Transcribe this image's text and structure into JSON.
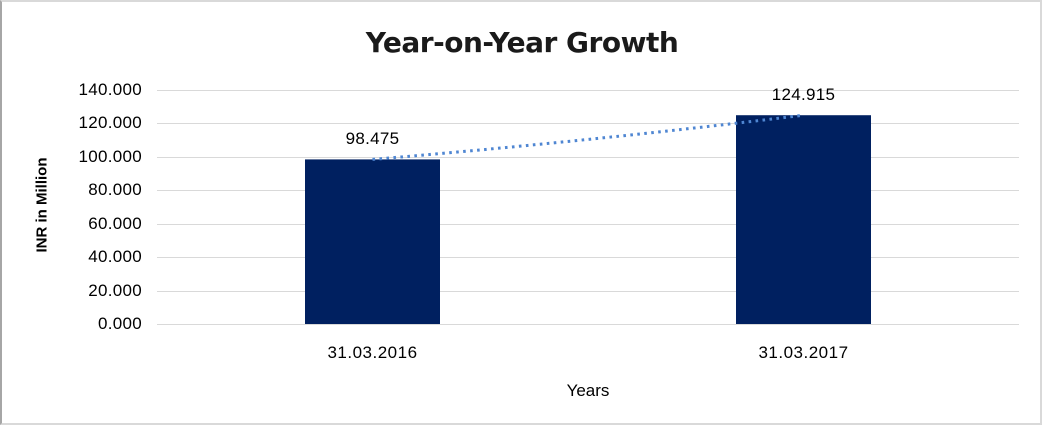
{
  "window": {
    "background": "#ffffff",
    "frame_border_color": "#d9d9d9",
    "frame_border_left_color": "#a6a6a6"
  },
  "chart_data": {
    "type": "bar",
    "title": "Year-on-Year Growth",
    "categories": [
      "31.03.2016",
      "31.03.2017"
    ],
    "values": [
      98.475,
      124.915
    ],
    "value_labels": [
      "98.475",
      "124.915"
    ],
    "xlabel": "Years",
    "ylabel": "INR in Million",
    "ylim": [
      0,
      140
    ],
    "ytick_step": 20,
    "ytick_labels": [
      "0.000",
      "20.000",
      "40.000",
      "60.000",
      "80.000",
      "100.000",
      "120.000",
      "140.000"
    ],
    "grid": true,
    "legend_position": "none",
    "colors": {
      "bar": "#002060",
      "gridline": "#d9d9d9",
      "axis_line": "#d9d9d9",
      "trendline": "#4f86d2",
      "title": "#1a1a1a",
      "text": "#000000"
    },
    "trendline": {
      "style": "dotted",
      "from_category": "31.03.2016",
      "from_value": 98.475,
      "to_category": "31.03.2017",
      "to_value": 124.915
    }
  }
}
